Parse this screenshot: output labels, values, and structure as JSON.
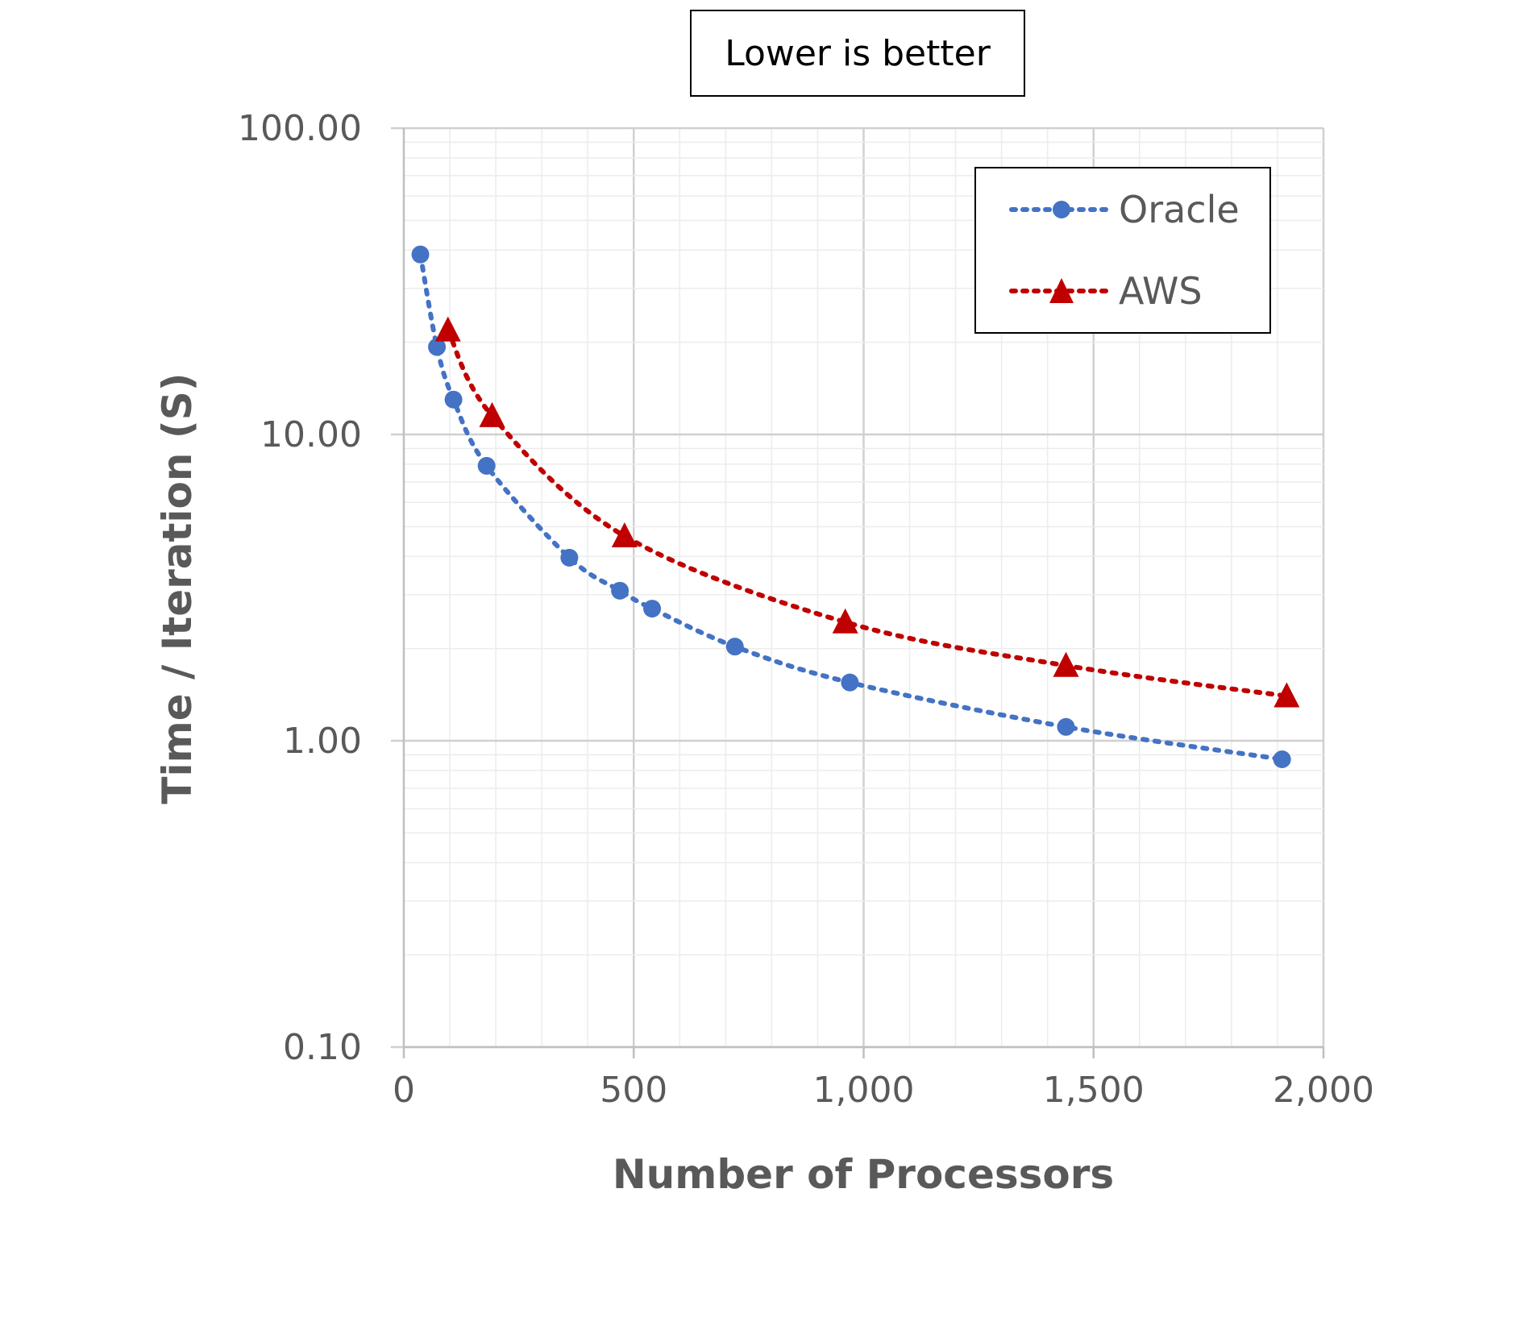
{
  "chart_data": {
    "type": "scatter",
    "title": "Lower is better",
    "xlabel": "Number of Processors",
    "ylabel": "Time / Iteration (S)",
    "xlim": [
      0,
      2000
    ],
    "ylim": [
      0.1,
      100
    ],
    "yscale": "log",
    "xticks": [
      "0",
      "500",
      "1,000",
      "1,500",
      "2,000"
    ],
    "yticks": [
      "100.00",
      "10.00",
      "1.00",
      "0.10"
    ],
    "grid": true,
    "legend_position": "top-right",
    "series": [
      {
        "name": "Oracle",
        "color": "#4472C4",
        "marker": "circle",
        "line": "dotted",
        "x": [
          36,
          72,
          108,
          180,
          360,
          470,
          540,
          720,
          970,
          1440,
          1910
        ],
        "y": [
          38.7,
          19.3,
          13.0,
          7.9,
          3.96,
          3.09,
          2.7,
          2.03,
          1.55,
          1.11,
          0.87
        ]
      },
      {
        "name": "AWS",
        "color": "#C00000",
        "marker": "triangle",
        "line": "dotted",
        "x": [
          96,
          192,
          480,
          960,
          1440,
          1920
        ],
        "y": [
          21.9,
          11.5,
          4.66,
          2.44,
          1.76,
          1.4
        ]
      }
    ]
  }
}
